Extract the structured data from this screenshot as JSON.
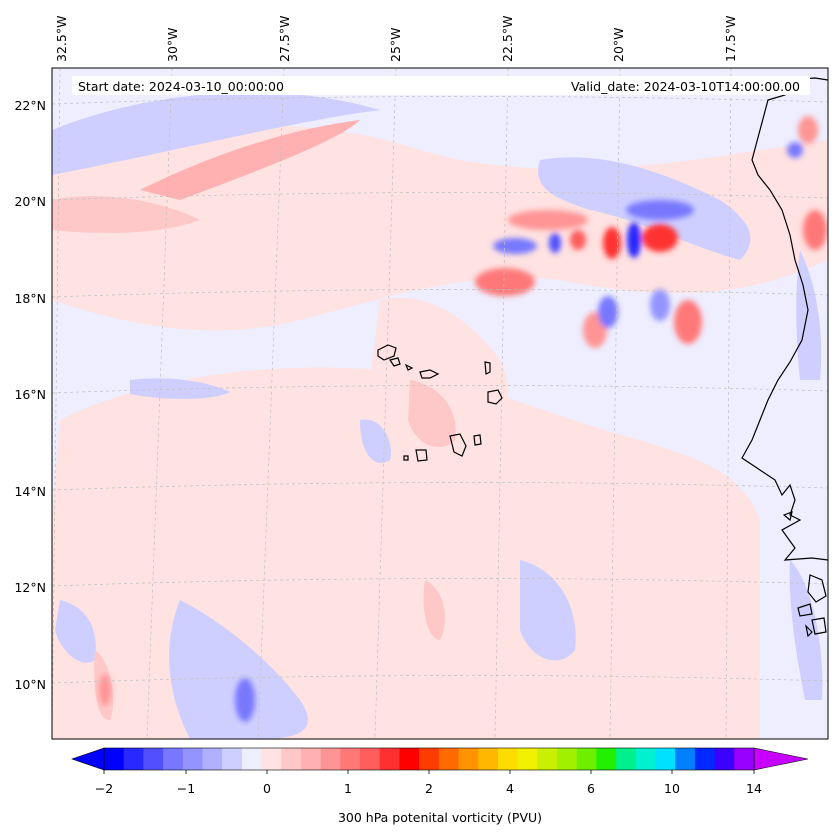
{
  "header": {
    "start_date": "Start date: 2024-03-10_00:00:00",
    "valid_date": "Valid_date: 2024-03-10T14:00:00.00"
  },
  "lon_labels": [
    "32.5°W",
    "30°W",
    "27.5°W",
    "25°W",
    "22.5°W",
    "20°W",
    "17.5°W"
  ],
  "lat_labels": [
    "22°N",
    "20°N",
    "18°N",
    "16°N",
    "14°N",
    "12°N",
    "10°N"
  ],
  "colorbar": {
    "label": "300 hPa potenital vorticity (PVU)",
    "tick_labels": [
      "−2",
      "−1",
      "0",
      "1",
      "2",
      "4",
      "6",
      "10",
      "14"
    ],
    "colors": [
      "#0000ff",
      "#2828ff",
      "#5050ff",
      "#7878ff",
      "#9494ff",
      "#b0b0ff",
      "#cfcfff",
      "#eeeeff",
      "#ffe2e2",
      "#ffc8c8",
      "#ffb0b0",
      "#ff9494",
      "#ff7878",
      "#ff5c5c",
      "#ff3030",
      "#ff0000",
      "#ff3c00",
      "#ff6a00",
      "#ff9400",
      "#ffb800",
      "#ffdc00",
      "#f0f000",
      "#c8f000",
      "#a0f000",
      "#6cf000",
      "#20f000",
      "#00f08c",
      "#00f0d0",
      "#00e0ff",
      "#0080ff",
      "#0028ff",
      "#3c00ff",
      "#9a00ff"
    ],
    "under_color": "#0000ff",
    "over_color": "#c800ff"
  },
  "colors": {
    "background": "#eeeeff",
    "coast": "#000000",
    "grid": "#c0c0c0"
  }
}
